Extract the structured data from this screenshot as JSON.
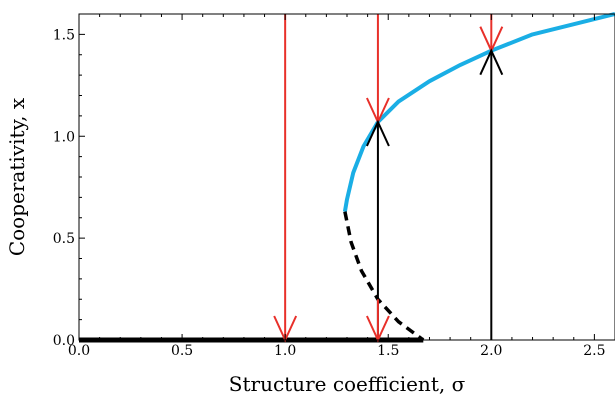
{
  "chart_data": {
    "type": "line",
    "xlabel": "Structure coefficient, σ",
    "ylabel": "Cooperativity, x",
    "xlim": [
      0,
      2.6
    ],
    "ylim": [
      0,
      1.6
    ],
    "x_ticks": [
      0.0,
      0.5,
      1.0,
      1.5,
      2.0,
      2.5
    ],
    "x_tick_labels": [
      "0.0",
      "0.5",
      "1.0",
      "1.5",
      "2.0",
      "2.5"
    ],
    "y_ticks": [
      0.0,
      0.5,
      1.0,
      1.5
    ],
    "y_tick_labels": [
      "0.0",
      "0.5",
      "1.0",
      "1.5"
    ],
    "grid": false,
    "series": [
      {
        "style": "stable",
        "color": "#1aaee5",
        "points": [
          [
            1.29,
            0.63
          ],
          [
            1.3,
            0.69
          ],
          [
            1.33,
            0.82
          ],
          [
            1.38,
            0.95
          ],
          [
            1.45,
            1.07
          ],
          [
            1.55,
            1.17
          ],
          [
            1.7,
            1.27
          ],
          [
            1.85,
            1.35
          ],
          [
            2.0,
            1.42
          ],
          [
            2.2,
            1.5
          ],
          [
            2.4,
            1.55
          ],
          [
            2.6,
            1.6
          ]
        ]
      },
      {
        "style": "unstable",
        "color": "#000000",
        "points": [
          [
            1.29,
            0.63
          ],
          [
            1.32,
            0.48
          ],
          [
            1.37,
            0.34
          ],
          [
            1.45,
            0.2
          ],
          [
            1.55,
            0.09
          ],
          [
            1.67,
            0.0
          ]
        ]
      },
      {
        "style": "stable-zero",
        "color": "#000000",
        "points": [
          [
            0.0,
            0.0
          ],
          [
            1.67,
            0.0
          ]
        ]
      }
    ],
    "flow_arrows": [
      {
        "x": 1.0,
        "from": 1.6,
        "to": 0.0,
        "color": "#e8302a"
      },
      {
        "x": 1.45,
        "from": 1.6,
        "to": 1.07,
        "color": "#e8302a"
      },
      {
        "x": 1.45,
        "from": 0.0,
        "to": 1.07,
        "color": "#000000"
      },
      {
        "x": 1.45,
        "from": 0.2,
        "to": 0.0,
        "color": "#e8302a"
      },
      {
        "x": 2.0,
        "from": 1.6,
        "to": 1.42,
        "color": "#e8302a"
      },
      {
        "x": 2.0,
        "from": 0.0,
        "to": 1.42,
        "color": "#000000"
      }
    ]
  }
}
